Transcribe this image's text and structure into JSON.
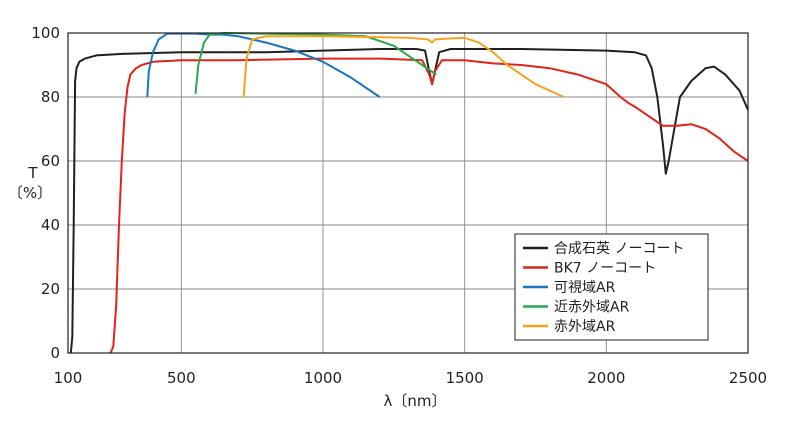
{
  "chart_data": {
    "type": "line",
    "title": "",
    "xlabel": "λ〔nm〕",
    "ylabel": "T",
    "ylabel_unit": "〔%〕",
    "xlim": [
      100,
      2500
    ],
    "ylim": [
      0,
      100
    ],
    "xticks": [
      100,
      500,
      1000,
      1500,
      2000,
      2500
    ],
    "yticks": [
      0,
      20,
      40,
      60,
      80,
      100
    ],
    "grid": true,
    "legend_position": "bottom-right",
    "series": [
      {
        "name": "合成石英 ノーコート",
        "color": "#231f20",
        "points": [
          [
            110,
            0
          ],
          [
            115,
            5
          ],
          [
            120,
            40
          ],
          [
            125,
            85
          ],
          [
            130,
            89
          ],
          [
            140,
            91
          ],
          [
            160,
            92
          ],
          [
            200,
            93
          ],
          [
            300,
            93.5
          ],
          [
            500,
            94
          ],
          [
            800,
            94
          ],
          [
            1000,
            94.5
          ],
          [
            1200,
            95
          ],
          [
            1330,
            95
          ],
          [
            1360,
            94.5
          ],
          [
            1375,
            88
          ],
          [
            1385,
            84
          ],
          [
            1395,
            88
          ],
          [
            1410,
            94
          ],
          [
            1450,
            95
          ],
          [
            1700,
            95
          ],
          [
            2000,
            94.5
          ],
          [
            2100,
            94
          ],
          [
            2140,
            93
          ],
          [
            2160,
            89
          ],
          [
            2180,
            80
          ],
          [
            2200,
            65
          ],
          [
            2210,
            56
          ],
          [
            2220,
            60
          ],
          [
            2240,
            70
          ],
          [
            2260,
            80
          ],
          [
            2300,
            85
          ],
          [
            2350,
            89
          ],
          [
            2380,
            89.5
          ],
          [
            2420,
            87
          ],
          [
            2470,
            82
          ],
          [
            2500,
            76
          ]
        ]
      },
      {
        "name": "BK7 ノーコート",
        "color": "#e2231a",
        "points": [
          [
            250,
            0
          ],
          [
            260,
            2
          ],
          [
            270,
            15
          ],
          [
            280,
            40
          ],
          [
            290,
            60
          ],
          [
            300,
            75
          ],
          [
            310,
            83
          ],
          [
            320,
            87
          ],
          [
            340,
            89
          ],
          [
            360,
            90
          ],
          [
            400,
            91
          ],
          [
            500,
            91.5
          ],
          [
            700,
            91.5
          ],
          [
            1000,
            92
          ],
          [
            1200,
            92
          ],
          [
            1350,
            91.5
          ],
          [
            1375,
            87
          ],
          [
            1385,
            84
          ],
          [
            1395,
            88
          ],
          [
            1420,
            91.5
          ],
          [
            1500,
            91.5
          ],
          [
            1600,
            90.5
          ],
          [
            1700,
            90
          ],
          [
            1800,
            89
          ],
          [
            1900,
            87
          ],
          [
            2000,
            84
          ],
          [
            2050,
            80
          ],
          [
            2080,
            78
          ],
          [
            2100,
            77
          ],
          [
            2150,
            74
          ],
          [
            2200,
            71
          ],
          [
            2250,
            71
          ],
          [
            2300,
            71.5
          ],
          [
            2350,
            70
          ],
          [
            2400,
            67
          ],
          [
            2450,
            63
          ],
          [
            2500,
            60
          ]
        ]
      },
      {
        "name": "可視域AR",
        "color": "#1b75bc",
        "points": [
          [
            380,
            80
          ],
          [
            385,
            88
          ],
          [
            400,
            94
          ],
          [
            420,
            98
          ],
          [
            450,
            99.8
          ],
          [
            550,
            99.8
          ],
          [
            600,
            99.5
          ],
          [
            650,
            99.5
          ],
          [
            700,
            99
          ],
          [
            800,
            97
          ],
          [
            900,
            94.5
          ],
          [
            1000,
            91
          ],
          [
            1100,
            86
          ],
          [
            1150,
            83
          ],
          [
            1200,
            80
          ]
        ]
      },
      {
        "name": "近赤外域AR",
        "color": "#2aa84a",
        "points": [
          [
            550,
            81
          ],
          [
            560,
            90
          ],
          [
            580,
            97
          ],
          [
            600,
            99.5
          ],
          [
            650,
            100
          ],
          [
            1000,
            99.5
          ],
          [
            1150,
            99
          ],
          [
            1250,
            96
          ],
          [
            1300,
            93
          ],
          [
            1350,
            90
          ],
          [
            1400,
            87
          ]
        ]
      },
      {
        "name": "赤外域AR",
        "color": "#f7a21b",
        "points": [
          [
            720,
            80
          ],
          [
            730,
            92
          ],
          [
            750,
            98
          ],
          [
            800,
            99
          ],
          [
            1000,
            99
          ],
          [
            1300,
            98.5
          ],
          [
            1370,
            98
          ],
          [
            1385,
            97
          ],
          [
            1395,
            98
          ],
          [
            1500,
            98.5
          ],
          [
            1550,
            97
          ],
          [
            1600,
            94
          ],
          [
            1650,
            90
          ],
          [
            1700,
            87
          ],
          [
            1750,
            84
          ],
          [
            1800,
            82
          ],
          [
            1850,
            80
          ]
        ]
      }
    ]
  }
}
